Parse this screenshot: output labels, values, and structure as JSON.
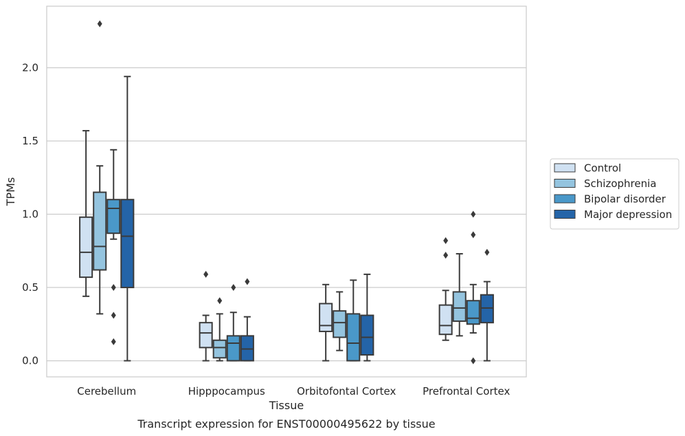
{
  "caption": "Transcript expression for ENST00000495622 by tissue",
  "chart_data": {
    "type": "box",
    "xlabel": "Tissue",
    "ylabel": "TPMs",
    "ylim": [
      -0.11,
      2.42
    ],
    "yticks": [
      0.0,
      0.5,
      1.0,
      1.5,
      2.0
    ],
    "ytick_labels": [
      "0.0",
      "0.5",
      "1.0",
      "1.5",
      "2.0"
    ],
    "grid": "horizontal",
    "legend_position": "right",
    "categories": [
      "Cerebellum",
      "Hipppocampus",
      "Orbitofontal Cortex",
      "Prefrontal Cortex"
    ],
    "series": [
      {
        "name": "Control",
        "color": "#d0e1f2",
        "boxes": [
          {
            "whislo": 0.44,
            "q1": 0.57,
            "med": 0.74,
            "q3": 0.98,
            "whishi": 1.57,
            "fliers": []
          },
          {
            "whislo": 0.0,
            "q1": 0.09,
            "med": 0.19,
            "q3": 0.26,
            "whishi": 0.31,
            "fliers": [
              0.59
            ]
          },
          {
            "whislo": 0.0,
            "q1": 0.2,
            "med": 0.24,
            "q3": 0.39,
            "whishi": 0.52,
            "fliers": []
          },
          {
            "whislo": 0.14,
            "q1": 0.18,
            "med": 0.24,
            "q3": 0.38,
            "whishi": 0.48,
            "fliers": [
              0.72,
              0.82
            ]
          }
        ]
      },
      {
        "name": "Schizophrenia",
        "color": "#94c4df",
        "boxes": [
          {
            "whislo": 0.32,
            "q1": 0.62,
            "med": 0.78,
            "q3": 1.15,
            "whishi": 1.33,
            "fliers": [
              2.3
            ]
          },
          {
            "whislo": 0.0,
            "q1": 0.02,
            "med": 0.09,
            "q3": 0.14,
            "whishi": 0.32,
            "fliers": [
              0.41
            ]
          },
          {
            "whislo": 0.07,
            "q1": 0.16,
            "med": 0.26,
            "q3": 0.34,
            "whishi": 0.47,
            "fliers": []
          },
          {
            "whislo": 0.17,
            "q1": 0.27,
            "med": 0.36,
            "q3": 0.47,
            "whishi": 0.73,
            "fliers": []
          }
        ]
      },
      {
        "name": "Bipolar disorder",
        "color": "#4a98c9",
        "boxes": [
          {
            "whislo": 0.83,
            "q1": 0.87,
            "med": 1.04,
            "q3": 1.1,
            "whishi": 1.44,
            "fliers": [
              0.5,
              0.31,
              0.13
            ]
          },
          {
            "whislo": 0.0,
            "q1": 0.0,
            "med": 0.12,
            "q3": 0.17,
            "whishi": 0.33,
            "fliers": [
              0.5
            ]
          },
          {
            "whislo": 0.0,
            "q1": 0.0,
            "med": 0.12,
            "q3": 0.32,
            "whishi": 0.55,
            "fliers": []
          },
          {
            "whislo": 0.19,
            "q1": 0.25,
            "med": 0.29,
            "q3": 0.41,
            "whishi": 0.52,
            "fliers": [
              1.0,
              0.86,
              0.0
            ]
          }
        ]
      },
      {
        "name": "Major depression",
        "color": "#2464a8",
        "boxes": [
          {
            "whislo": 0.0,
            "q1": 0.5,
            "med": 0.85,
            "q3": 1.1,
            "whishi": 1.94,
            "fliers": []
          },
          {
            "whislo": 0.0,
            "q1": 0.0,
            "med": 0.08,
            "q3": 0.17,
            "whishi": 0.3,
            "fliers": [
              0.54
            ]
          },
          {
            "whislo": 0.0,
            "q1": 0.04,
            "med": 0.16,
            "q3": 0.31,
            "whishi": 0.59,
            "fliers": []
          },
          {
            "whislo": 0.0,
            "q1": 0.26,
            "med": 0.36,
            "q3": 0.45,
            "whishi": 0.54,
            "fliers": [
              0.74
            ]
          }
        ]
      }
    ]
  }
}
